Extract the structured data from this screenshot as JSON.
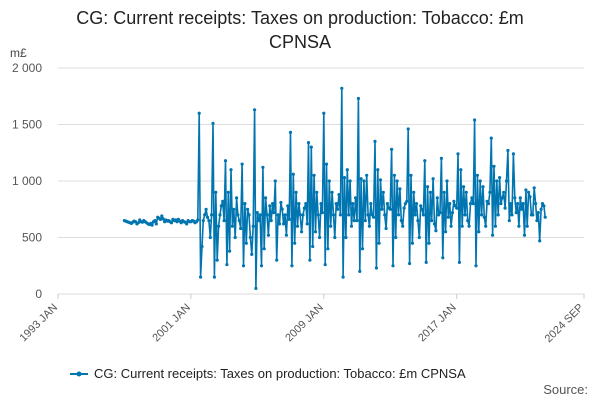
{
  "title_line1": "CG: Current receipts: Taxes on production: Tobacco: £m",
  "title_line2": "CPNSA",
  "source_label": "Source:",
  "colors": {
    "series": "#0075b0",
    "grid": "#dddddd",
    "axis": "#cccccc"
  },
  "chart_data": {
    "type": "line",
    "title": "CG: Current receipts: Taxes on production: Tobacco: £m CPNSA",
    "unit_label": "m£",
    "ylim": [
      0,
      2000
    ],
    "y_ticks": [
      0,
      500,
      1000,
      1500,
      2000
    ],
    "y_tick_labels": [
      "0",
      "500",
      "1 000",
      "1 500",
      "2 000"
    ],
    "xlim": [
      "1993-01",
      "2024-09"
    ],
    "x_ticks": [
      "1993-01",
      "2001-01",
      "2009-01",
      "2017-01",
      "2024-09"
    ],
    "x_tick_labels": [
      "1993 JAN",
      "2001 JAN",
      "2009 JAN",
      "2017 JAN",
      "2024 SEP"
    ],
    "grid": "horizontal",
    "legend_position": "bottom",
    "series": [
      {
        "name": "CG: Current receipts: Taxes on production: Tobacco: £m CPNSA",
        "start": "1997-01",
        "frequency": "monthly",
        "values": [
          650,
          645,
          640,
          635,
          630,
          625,
          635,
          645,
          640,
          620,
          630,
          655,
          640,
          635,
          650,
          640,
          630,
          620,
          615,
          625,
          610,
          640,
          650,
          620,
          680,
          670,
          660,
          690,
          665,
          640,
          655,
          645,
          650,
          640,
          630,
          660,
          650,
          655,
          640,
          660,
          645,
          630,
          650,
          640,
          635,
          620,
          650,
          640,
          640,
          650,
          645,
          630,
          640,
          655,
          1600,
          150,
          420,
          650,
          700,
          750,
          680,
          650,
          500,
          700,
          1510,
          150,
          900,
          300,
          600,
          700,
          780,
          820,
          650,
          1180,
          260,
          900,
          380,
          1100,
          600,
          750,
          500,
          850,
          700,
          650,
          580,
          1150,
          250,
          800,
          450,
          750,
          700,
          500,
          350,
          600,
          1630,
          50,
          720,
          650,
          700,
          250,
          1120,
          400,
          850,
          700,
          520,
          780,
          650,
          800,
          720,
          1000,
          300,
          700,
          620,
          810,
          750,
          620,
          700,
          520,
          780,
          660,
          1430,
          250,
          1060,
          450,
          900,
          600,
          800,
          700,
          550,
          700,
          760,
          800,
          620,
          1340,
          300,
          1300,
          420,
          1050,
          550,
          900,
          700,
          500,
          800,
          720,
          1600,
          260,
          1150,
          400,
          1000,
          600,
          900,
          700,
          500,
          800,
          750,
          880,
          700,
          1820,
          150,
          1030,
          500,
          1100,
          700,
          1000,
          600,
          800,
          650,
          850,
          650,
          1730,
          200,
          1020,
          400,
          1000,
          650,
          1050,
          700,
          600,
          800,
          700,
          680,
          1350,
          230,
          1100,
          450,
          1010,
          750,
          900,
          700,
          580,
          800,
          760,
          750,
          1280,
          250,
          1050,
          500,
          1000,
          700,
          930,
          650,
          600,
          760,
          800,
          820,
          1460,
          270,
          1050,
          450,
          900,
          700,
          800,
          650,
          500,
          780,
          750,
          700,
          1180,
          280,
          950,
          450,
          900,
          650,
          1020,
          620,
          560,
          850,
          700,
          720,
          1200,
          320,
          900,
          550,
          1000,
          680,
          800,
          600,
          720,
          820,
          780,
          760,
          1240,
          280,
          1100,
          600,
          950,
          700,
          900,
          650,
          600,
          800,
          850,
          800,
          1540,
          250,
          1050,
          550,
          1000,
          700,
          950,
          680,
          600,
          820,
          800,
          900,
          1380,
          520,
          1130,
          600,
          1000,
          700,
          1030,
          800,
          850,
          900,
          760,
          1000,
          1270,
          650,
          800,
          700,
          1240,
          850,
          720,
          800,
          600,
          850,
          750,
          800,
          520,
          920,
          600,
          900,
          860,
          700,
          700,
          940,
          800,
          650,
          720,
          470,
          750,
          800,
          780,
          680
        ]
      }
    ]
  }
}
